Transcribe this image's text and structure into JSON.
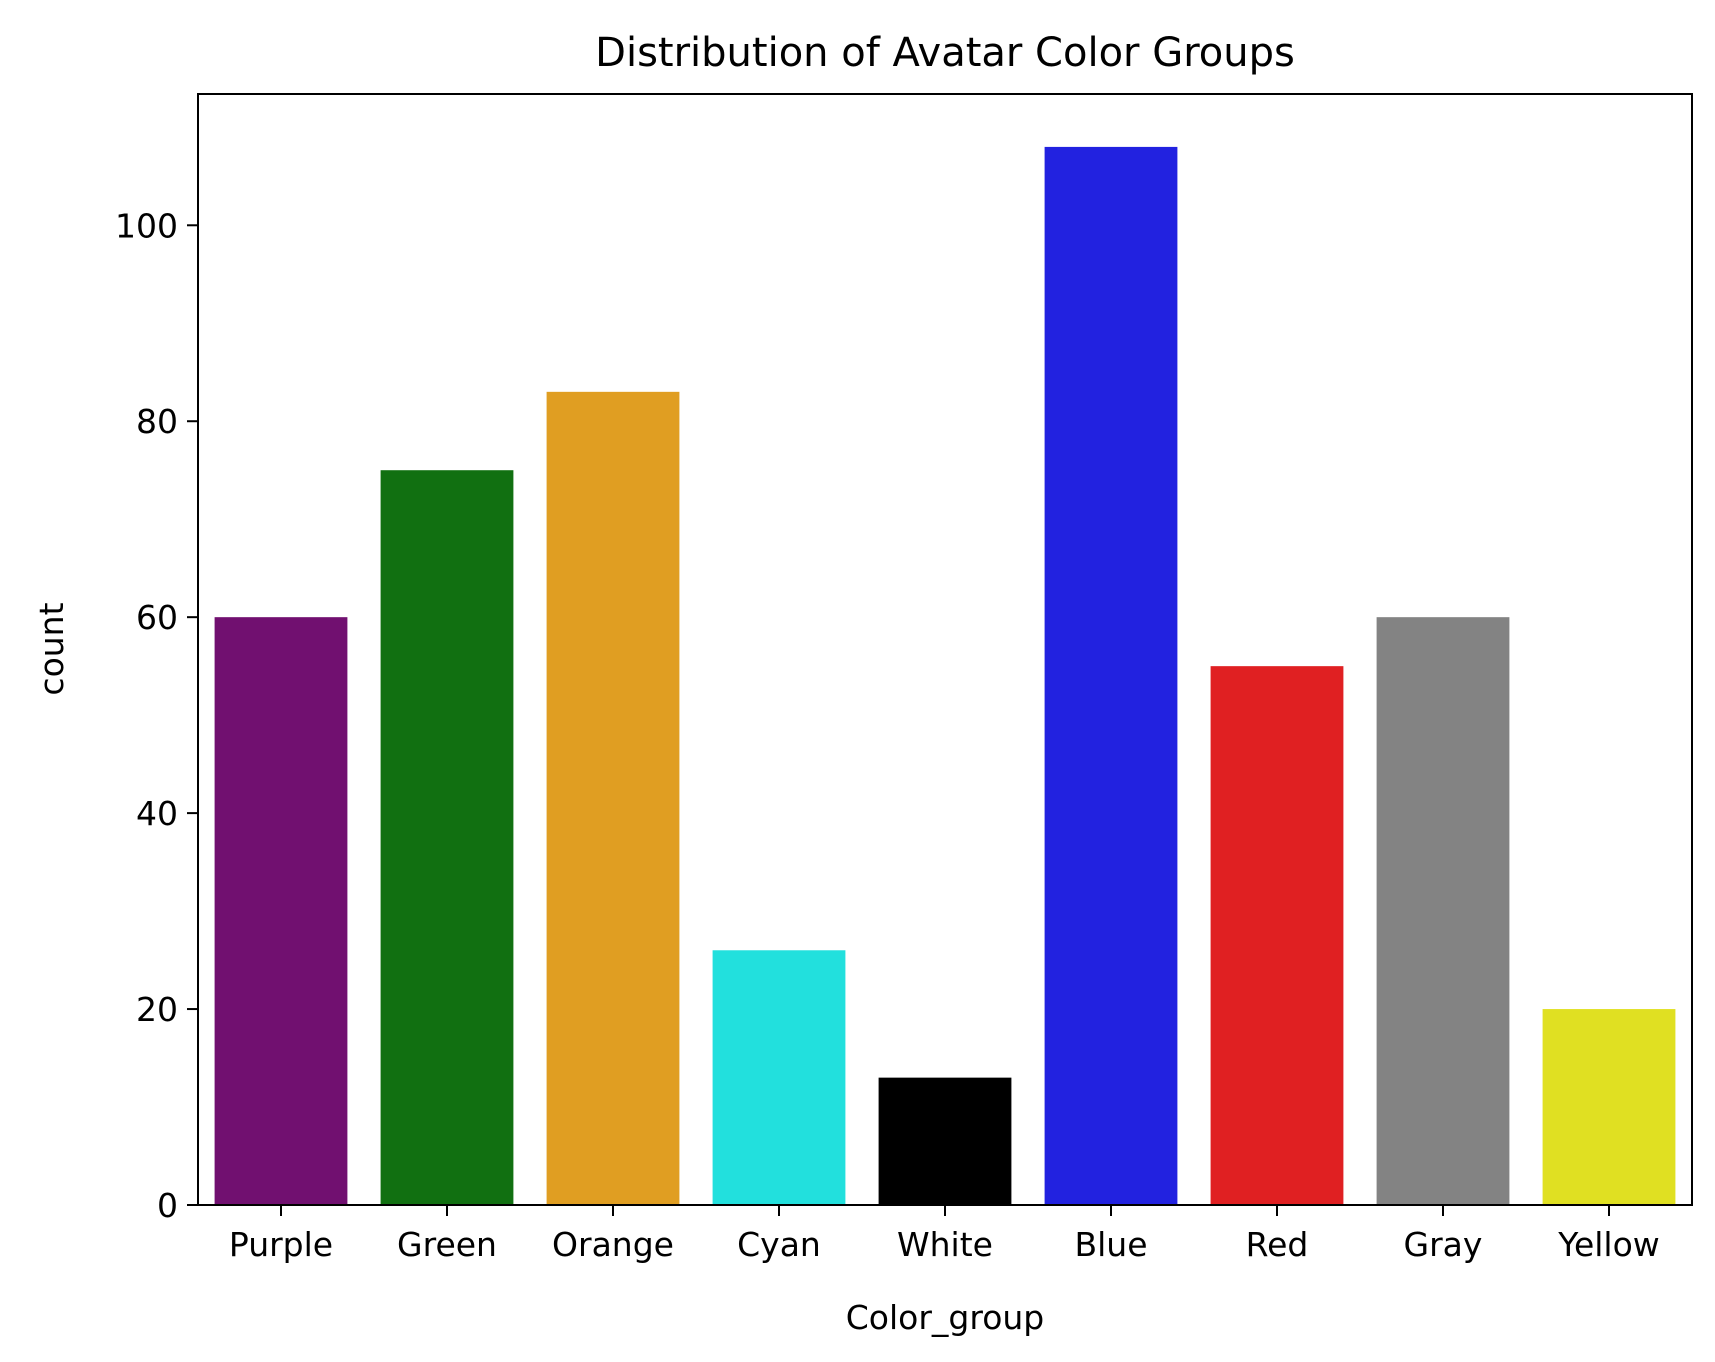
{
  "chart_data": {
    "type": "bar",
    "title": "Distribution of Avatar Color Groups",
    "xlabel": "Color_group",
    "ylabel": "count",
    "categories": [
      "Purple",
      "Green",
      "Orange",
      "Cyan",
      "White",
      "Blue",
      "Red",
      "Gray",
      "Yellow"
    ],
    "values": [
      60,
      75,
      83,
      26,
      13,
      108,
      55,
      60,
      20
    ],
    "colors": [
      "#711070",
      "#117011",
      "#e09e22",
      "#22e0dd",
      "#000000",
      "#2222e0",
      "#e02022",
      "#838383",
      "#e0e022"
    ],
    "yticks": [
      0,
      20,
      40,
      60,
      80,
      100
    ],
    "ylim": [
      0,
      113.4
    ],
    "grid": false,
    "legend": "none"
  }
}
